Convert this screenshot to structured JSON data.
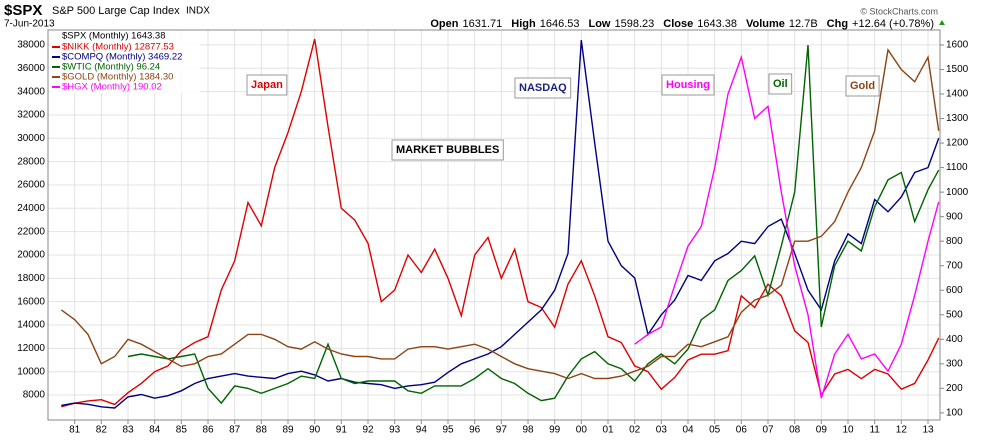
{
  "chart_data": {
    "type": "line",
    "symbol": "$SPX",
    "title": "S&P 500 Large Cap Index",
    "exchange": "INDX",
    "date": "7-Jun-2013",
    "quote": [
      {
        "label": "Open",
        "value": "1631.71"
      },
      {
        "label": "High",
        "value": "1646.53"
      },
      {
        "label": "Low",
        "value": "1598.23"
      },
      {
        "label": "Close",
        "value": "1643.38"
      },
      {
        "label": "Volume",
        "value": "12.7B"
      },
      {
        "label": "Chg",
        "value": "+12.64 (+0.78%)"
      }
    ],
    "copyright": "© StockCharts.com",
    "legend_header": "$SPX (Monthly) 1643.38",
    "legend": "top-left",
    "grid": true,
    "annotations": [
      {
        "text": "Japan",
        "color": "#e00000"
      },
      {
        "text": "NASDAQ",
        "color": "#1a237e"
      },
      {
        "text": "Housing",
        "color": "#ff00ff"
      },
      {
        "text": "Oil",
        "color": "#006400"
      },
      {
        "text": "Gold",
        "color": "#8b4513"
      },
      {
        "text": "MARKET BUBBLES",
        "color": "#000000"
      }
    ],
    "x": [
      1980.5,
      1981,
      1981.5,
      1982,
      1982.5,
      1983,
      1983.5,
      1984,
      1984.5,
      1985,
      1985.5,
      1986,
      1986.5,
      1987,
      1987.5,
      1988,
      1988.5,
      1989,
      1989.5,
      1990,
      1990.5,
      1991,
      1991.5,
      1992,
      1992.5,
      1993,
      1993.5,
      1994,
      1994.5,
      1995,
      1995.5,
      1996,
      1996.5,
      1997,
      1997.5,
      1998,
      1998.5,
      1999,
      1999.5,
      2000,
      2000.5,
      2001,
      2001.5,
      2002,
      2002.5,
      2003,
      2003.5,
      2004,
      2004.5,
      2005,
      2005.5,
      2006,
      2006.5,
      2007,
      2007.5,
      2008,
      2008.5,
      2009,
      2009.5,
      2010,
      2010.5,
      2011,
      2011.5,
      2012,
      2012.5,
      2013,
      2013.4
    ],
    "xlim": [
      1980,
      2013.45
    ],
    "xticks": [
      {
        "value": 1981,
        "label": "81"
      },
      {
        "value": 1982,
        "label": "82"
      },
      {
        "value": 1983,
        "label": "83"
      },
      {
        "value": 1984,
        "label": "84"
      },
      {
        "value": 1985,
        "label": "85"
      },
      {
        "value": 1986,
        "label": "86"
      },
      {
        "value": 1987,
        "label": "87"
      },
      {
        "value": 1988,
        "label": "88"
      },
      {
        "value": 1989,
        "label": "89"
      },
      {
        "value": 1990,
        "label": "90"
      },
      {
        "value": 1991,
        "label": "91"
      },
      {
        "value": 1992,
        "label": "92"
      },
      {
        "value": 1993,
        "label": "93"
      },
      {
        "value": 1994,
        "label": "94"
      },
      {
        "value": 1995,
        "label": "95"
      },
      {
        "value": 1996,
        "label": "96"
      },
      {
        "value": 1997,
        "label": "97"
      },
      {
        "value": 1998,
        "label": "98"
      },
      {
        "value": 1999,
        "label": "99"
      },
      {
        "value": 2000,
        "label": "00"
      },
      {
        "value": 2001,
        "label": "01"
      },
      {
        "value": 2002,
        "label": "02"
      },
      {
        "value": 2003,
        "label": "03"
      },
      {
        "value": 2004,
        "label": "04"
      },
      {
        "value": 2005,
        "label": "05"
      },
      {
        "value": 2006,
        "label": "06"
      },
      {
        "value": 2007,
        "label": "07"
      },
      {
        "value": 2008,
        "label": "08"
      },
      {
        "value": 2009,
        "label": "09"
      },
      {
        "value": 2010,
        "label": "10"
      },
      {
        "value": 2011,
        "label": "11"
      },
      {
        "value": 2012,
        "label": "12"
      },
      {
        "value": 2013,
        "label": "13"
      }
    ],
    "ylim": [
      5860,
      39280
    ],
    "yticks": [
      8000,
      10000,
      12000,
      14000,
      16000,
      18000,
      20000,
      22000,
      24000,
      26000,
      28000,
      30000,
      32000,
      34000,
      36000,
      38000
    ],
    "y2lim": [
      71,
      1661
    ],
    "y2ticks": [
      100,
      200,
      300,
      400,
      500,
      600,
      700,
      800,
      900,
      1000,
      1100,
      1200,
      1300,
      1400,
      1500,
      1600
    ],
    "series": [
      {
        "name": "$NIKK (Monthly) 12877.53",
        "color": "#e00000",
        "values": [
          7000,
          7300,
          7500,
          7600,
          7200,
          8200,
          9000,
          10000,
          10500,
          11800,
          12500,
          13000,
          17000,
          19500,
          24500,
          22500,
          27500,
          30500,
          34000,
          38500,
          31000,
          24000,
          23000,
          21000,
          16000,
          17000,
          20000,
          18500,
          20500,
          18000,
          14800,
          20000,
          21500,
          18000,
          20500,
          16000,
          15500,
          13800,
          17500,
          19500,
          16500,
          13000,
          12500,
          10500,
          10000,
          8500,
          9500,
          11000,
          11500,
          11500,
          11800,
          16500,
          15500,
          17500,
          16500,
          13500,
          12500,
          8000,
          9800,
          10200,
          9400,
          10200,
          9800,
          8500,
          9000,
          11000,
          12877.53
        ]
      },
      {
        "name": "$COMPQ (Monthly) 3469.22",
        "color": "#000080",
        "axis": "y2",
        "values": [
          130,
          140,
          135,
          125,
          120,
          165,
          175,
          160,
          170,
          190,
          220,
          240,
          250,
          260,
          250,
          245,
          240,
          260,
          270,
          255,
          230,
          240,
          225,
          220,
          215,
          200,
          210,
          215,
          225,
          265,
          300,
          320,
          340,
          370,
          420,
          470,
          520,
          600,
          750,
          1620,
          1200,
          800,
          700,
          650,
          420,
          500,
          560,
          660,
          640,
          720,
          750,
          800,
          790,
          860,
          890,
          750,
          600,
          520,
          720,
          830,
          790,
          970,
          920,
          980,
          1080,
          1100,
          1220
        ]
      },
      {
        "name": "$WTIC (Monthly) 96.24",
        "color": "#006400",
        "axis": "y2",
        "values": [
          null,
          null,
          null,
          null,
          null,
          330,
          340,
          330,
          320,
          330,
          340,
          200,
          140,
          210,
          200,
          180,
          200,
          220,
          250,
          240,
          380,
          240,
          220,
          230,
          230,
          230,
          190,
          180,
          210,
          210,
          210,
          240,
          280,
          240,
          220,
          180,
          150,
          160,
          250,
          320,
          350,
          300,
          280,
          230,
          300,
          340,
          300,
          360,
          480,
          520,
          640,
          680,
          740,
          580,
          780,
          1000,
          1600,
          450,
          700,
          800,
          760,
          940,
          1050,
          1080,
          880,
          1010,
          1090
        ]
      },
      {
        "name": "$GOLD (Monthly) 1384.30",
        "color": "#8b4513",
        "axis": "y2",
        "values": [
          520,
          480,
          420,
          300,
          330,
          400,
          380,
          350,
          320,
          290,
          300,
          330,
          340,
          380,
          420,
          420,
          400,
          370,
          360,
          390,
          360,
          340,
          330,
          330,
          320,
          320,
          360,
          370,
          370,
          360,
          370,
          380,
          360,
          330,
          300,
          280,
          270,
          260,
          240,
          260,
          240,
          240,
          250,
          270,
          290,
          330,
          330,
          380,
          370,
          390,
          410,
          510,
          560,
          580,
          620,
          800,
          800,
          820,
          880,
          1000,
          1100,
          1250,
          1580,
          1500,
          1450,
          1550,
          1250
        ]
      },
      {
        "name": "$HGX (Monthly) 190.02",
        "color": "#ff00ff",
        "axis": "y2",
        "values": [
          null,
          null,
          null,
          null,
          null,
          null,
          null,
          null,
          null,
          null,
          null,
          null,
          null,
          null,
          null,
          null,
          null,
          null,
          null,
          null,
          null,
          null,
          null,
          null,
          null,
          null,
          null,
          null,
          null,
          null,
          null,
          null,
          null,
          null,
          null,
          null,
          null,
          null,
          null,
          null,
          null,
          null,
          null,
          380,
          420,
          450,
          620,
          780,
          860,
          1100,
          1400,
          1550,
          1300,
          1350,
          1000,
          700,
          500,
          160,
          340,
          420,
          320,
          340,
          270,
          380,
          580,
          800,
          960
        ]
      }
    ]
  }
}
